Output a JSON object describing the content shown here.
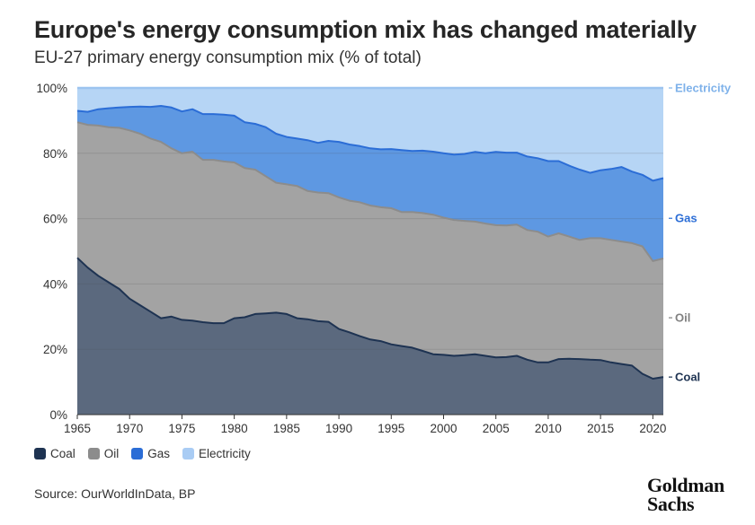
{
  "title": "Europe's energy consumption mix has changed materially",
  "subtitle": "EU-27 primary energy consumption mix (% of total)",
  "source": "Source: OurWorldInData, BP",
  "logo": {
    "line1": "Goldman",
    "line2": "Sachs"
  },
  "colors": {
    "coal": "#1e3352",
    "oil": "#8c8c8c",
    "gas": "#2b6dd6",
    "electricity": "#a9ccf4"
  },
  "chart_data": {
    "type": "area",
    "stacked": true,
    "x": [
      1965,
      1966,
      1967,
      1968,
      1969,
      1970,
      1971,
      1972,
      1973,
      1974,
      1975,
      1976,
      1977,
      1978,
      1979,
      1980,
      1981,
      1982,
      1983,
      1984,
      1985,
      1986,
      1987,
      1988,
      1989,
      1990,
      1991,
      1992,
      1993,
      1994,
      1995,
      1996,
      1997,
      1998,
      1999,
      2000,
      2001,
      2002,
      2003,
      2004,
      2005,
      2006,
      2007,
      2008,
      2009,
      2010,
      2011,
      2012,
      2013,
      2014,
      2015,
      2016,
      2017,
      2018,
      2019,
      2020,
      2021
    ],
    "cumulative_tops": {
      "coal": [
        48,
        45,
        42.5,
        40.5,
        38.5,
        35.5,
        33.5,
        31.5,
        29.5,
        30,
        29,
        28.8,
        28.3,
        28,
        28,
        29.5,
        29.8,
        30.8,
        31,
        31.2,
        30.8,
        29.5,
        29.2,
        28.6,
        28.4,
        26.2,
        25.2,
        24,
        23,
        22.5,
        21.5,
        21,
        20.5,
        19.5,
        18.5,
        18.3,
        18,
        18.2,
        18.5,
        18,
        17.5,
        17.6,
        18,
        16.8,
        16,
        16,
        17,
        17.1,
        17,
        16.8,
        16.7,
        16,
        15.5,
        15,
        12.5,
        11,
        11.5
      ],
      "oil": [
        89.5,
        88.7,
        88.5,
        88,
        87.8,
        87,
        86,
        84.5,
        83.5,
        81.5,
        80,
        80.5,
        78,
        78,
        77.5,
        77.2,
        75.5,
        75,
        73,
        71,
        70.5,
        70,
        68.5,
        68,
        67.8,
        66.5,
        65.5,
        65,
        64,
        63.5,
        63.2,
        62,
        62,
        61.7,
        61.2,
        60.3,
        59.6,
        59.3,
        59.1,
        58.5,
        58,
        57.9,
        58.2,
        56.5,
        56,
        54.5,
        55.5,
        54.5,
        53.5,
        54,
        54,
        53.5,
        53,
        52.5,
        51.5,
        47,
        47.8
      ],
      "gas": [
        93,
        92.7,
        93.5,
        93.8,
        94,
        94.2,
        94.3,
        94.2,
        94.5,
        94,
        92.8,
        93.5,
        92,
        92,
        91.8,
        91.5,
        89.5,
        89,
        88,
        86,
        85,
        84.5,
        84,
        83.2,
        83.8,
        83.5,
        82.7,
        82.2,
        81.5,
        81.2,
        81.3,
        81,
        80.7,
        80.8,
        80.5,
        80,
        79.6,
        79.8,
        80.4,
        80,
        80.4,
        80.2,
        80.2,
        79,
        78.5,
        77.6,
        77.6,
        76.2,
        75,
        74,
        74.8,
        75.2,
        75.8,
        74.4,
        73.4,
        71.6,
        72.4
      ],
      "electricity": [
        100,
        100,
        100,
        100,
        100,
        100,
        100,
        100,
        100,
        100,
        100,
        100,
        100,
        100,
        100,
        100,
        100,
        100,
        100,
        100,
        100,
        100,
        100,
        100,
        100,
        100,
        100,
        100,
        100,
        100,
        100,
        100,
        100,
        100,
        100,
        100,
        100,
        100,
        100,
        100,
        100,
        100,
        100,
        100,
        100,
        100,
        100,
        100,
        100,
        100,
        100,
        100,
        100,
        100,
        100,
        100,
        100
      ]
    },
    "series": [
      {
        "name": "Coal",
        "key": "coal"
      },
      {
        "name": "Oil",
        "key": "oil"
      },
      {
        "name": "Gas",
        "key": "gas"
      },
      {
        "name": "Electricity",
        "key": "electricity"
      }
    ],
    "ylim": [
      0,
      100
    ],
    "xlim": [
      1965,
      2021
    ],
    "yticks": [
      "0%",
      "20%",
      "40%",
      "60%",
      "80%",
      "100%"
    ],
    "ytick_values": [
      0,
      20,
      40,
      60,
      80,
      100
    ],
    "xticks": [
      "1965",
      "1970",
      "1975",
      "1980",
      "1985",
      "1990",
      "1995",
      "2000",
      "2005",
      "2010",
      "2015",
      "2020"
    ],
    "xtick_values": [
      1965,
      1970,
      1975,
      1980,
      1985,
      1990,
      1995,
      2000,
      2005,
      2010,
      2015,
      2020
    ],
    "end_labels": [
      {
        "key": "electricity",
        "text": "Electricity",
        "color": "#7fb2ea"
      },
      {
        "key": "gas",
        "text": "Gas",
        "color": "#2b6dd6"
      },
      {
        "key": "oil",
        "text": "Oil",
        "color": "#808080"
      },
      {
        "key": "coal",
        "text": "Coal",
        "color": "#1e3352"
      }
    ],
    "grid": true,
    "legend": "bottom-left"
  }
}
